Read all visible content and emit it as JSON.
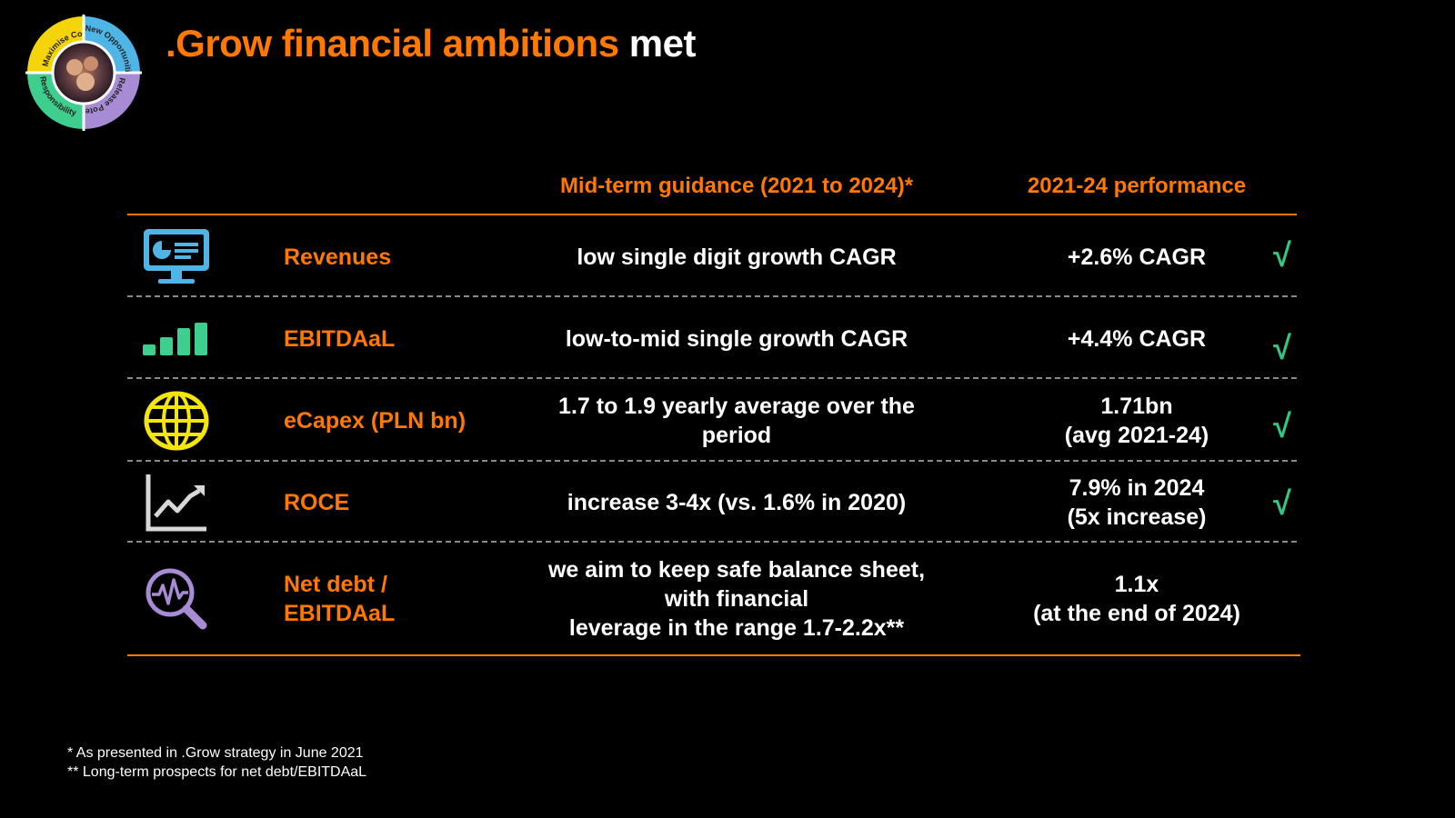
{
  "badge": {
    "segments": [
      "Maximise Core",
      "New Opportunities",
      "Release Potential",
      "Responsibility"
    ],
    "colors": {
      "core": "#f5d40a",
      "opportunities": "#4eb5e6",
      "potential": "#a78bd4",
      "responsibility": "#3ecf8e"
    }
  },
  "title": {
    "accent": ".Grow financial ambitions",
    "plain": " met"
  },
  "headers": {
    "guidance": "Mid-term guidance (2021 to 2024)*",
    "performance": "2021-24 performance"
  },
  "rows": [
    {
      "icon": "monitor-dashboard-icon",
      "metric": "Revenues",
      "guidance": "low single digit growth CAGR",
      "performance": "+2.6% CAGR",
      "check": "√"
    },
    {
      "icon": "bar-chart-icon",
      "metric": "EBITDAaL",
      "guidance": "low-to-mid single growth CAGR",
      "performance": "+4.4% CAGR",
      "check": "√"
    },
    {
      "icon": "globe-icon",
      "metric": "eCapex (PLN bn)",
      "guidance": "1.7 to 1.9 yearly average over the period",
      "performance_line1": "1.71bn",
      "performance_line2": "(avg 2021-24)",
      "check": "√"
    },
    {
      "icon": "trend-chart-icon",
      "metric": "ROCE",
      "guidance": "increase 3-4x (vs. 1.6% in 2020)",
      "performance_line1": "7.9% in 2024",
      "performance_line2": "(5x increase)",
      "check": "√"
    },
    {
      "icon": "magnifier-pulse-icon",
      "metric_line1": "Net debt /",
      "metric_line2": "EBITDAaL",
      "guidance_line1": "we aim to keep safe balance sheet,",
      "guidance_line2": "with financial",
      "guidance_line3": "leverage in the range 1.7-2.2x**",
      "performance_line1": "1.1x",
      "performance_line2": "(at the end of 2024)"
    }
  ],
  "footnotes": [
    "* As presented in .Grow strategy in June 2021",
    "** Long-term prospects for net debt/EBITDAaL"
  ],
  "colors": {
    "accent": "#ff7900",
    "check": "#32c882",
    "background": "#000000",
    "divider": "#8a8a8a"
  }
}
